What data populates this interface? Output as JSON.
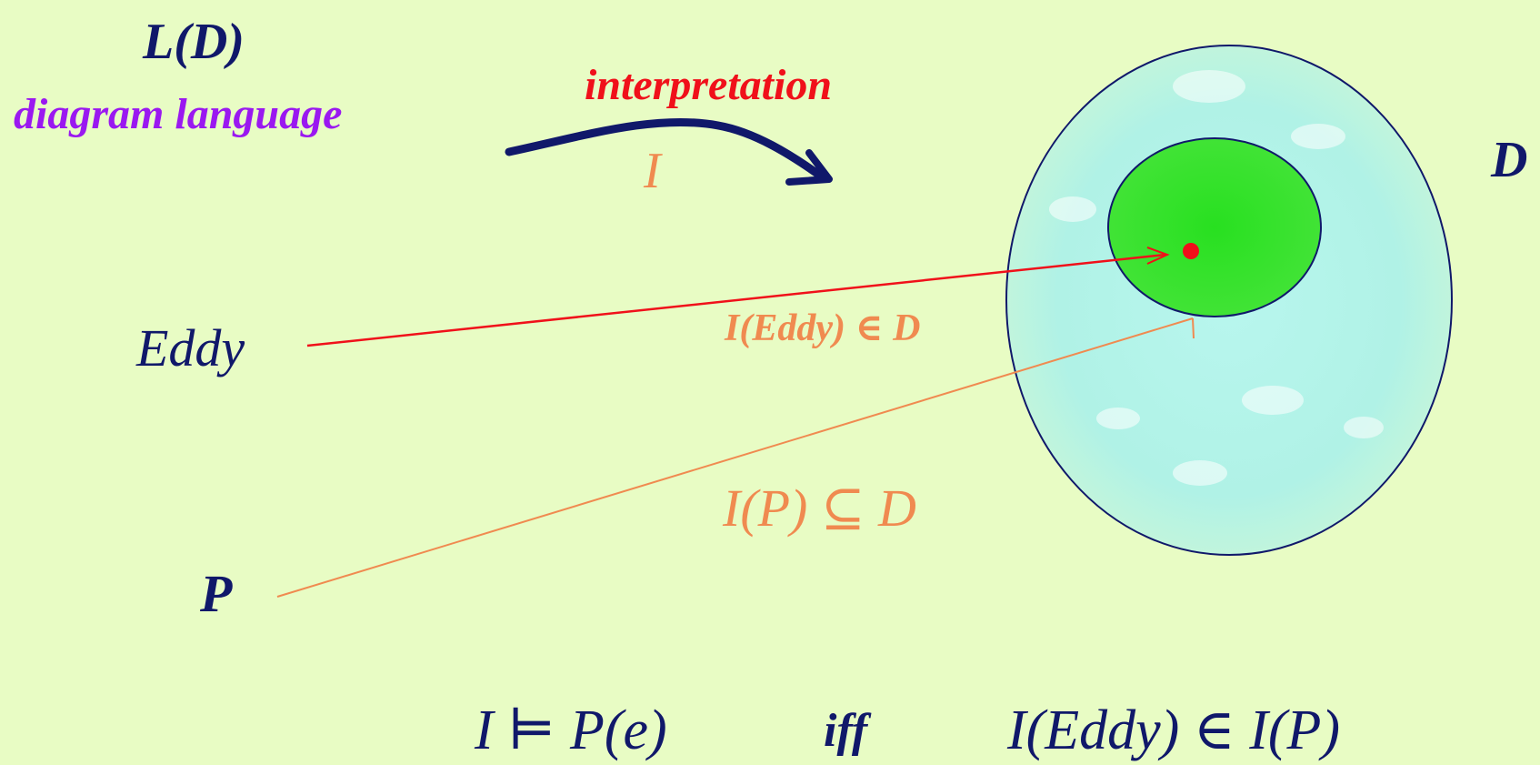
{
  "labels": {
    "language_symbol": "L(D)",
    "language_caption": "diagram language",
    "interpretation_caption": "interpretation",
    "interpretation_symbol": "I",
    "domain_symbol": "D",
    "constant": "Eddy",
    "predicate": "P",
    "eddy_membership": "I(Eddy) ∈ D",
    "p_subset": "I(P) ⊆ D"
  },
  "formula": {
    "lhs": "I ⊨ P(e)",
    "connective": "iff",
    "rhs": "I(Eddy) ∈ I(P)"
  },
  "colors": {
    "background": "#e8fcc4",
    "navy": "#10186a",
    "purple": "#9a18f0",
    "red": "#f0101a",
    "orange": "#f08a50",
    "domain_fill": "#a6f0ec",
    "predicate_fill": "#22d81a"
  }
}
